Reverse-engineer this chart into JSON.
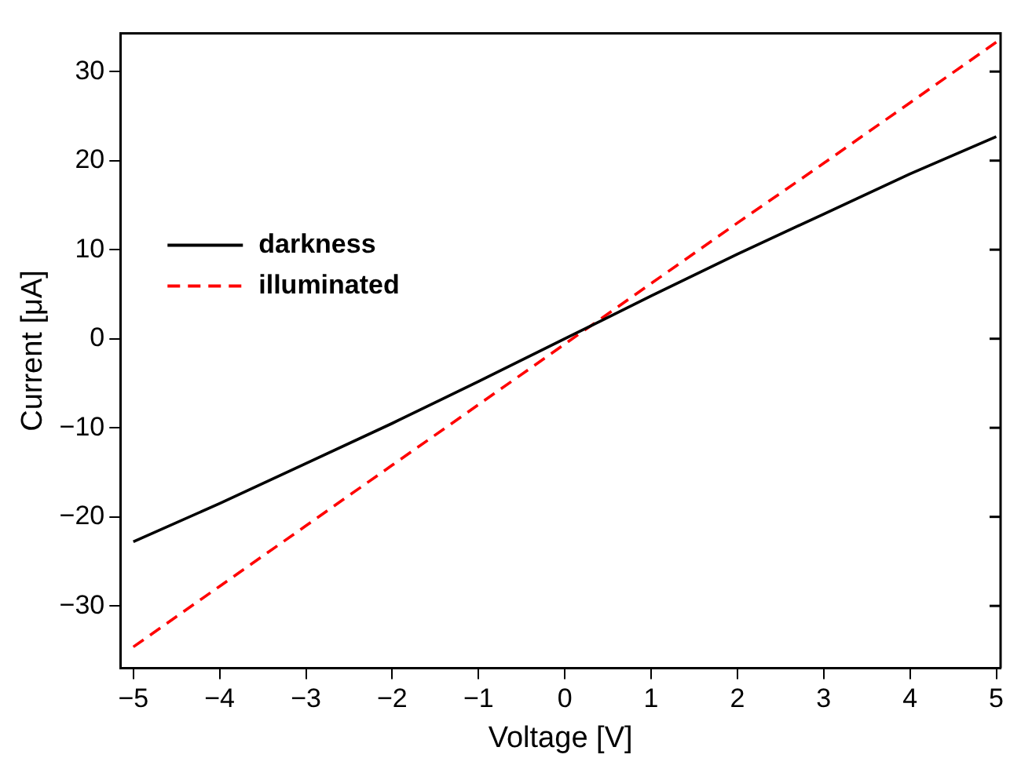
{
  "chart_data": {
    "type": "line",
    "xlabel": "Voltage [V]",
    "ylabel": "Current [μA]",
    "x": [
      -5,
      -4,
      -3,
      -2,
      -1,
      0,
      1,
      2,
      3,
      4,
      5
    ],
    "series": [
      {
        "name": "darkness",
        "color": "#000000",
        "line_style": "solid",
        "values": [
          -22.8,
          -18.5,
          -14,
          -9.5,
          -4.8,
          0,
          4.8,
          9.5,
          14,
          18.5,
          22.7
        ]
      },
      {
        "name": "illuminated",
        "color": "#ff0000",
        "line_style": "dashed",
        "values": [
          -34.6,
          -27.8,
          -21,
          -14.2,
          -7.4,
          -0.6,
          6.2,
          13,
          19.7,
          26.5,
          33.3
        ]
      }
    ],
    "xlim": [
      -5.15,
      5.05
    ],
    "xticks": [
      -5,
      -4,
      -3,
      -2,
      -1,
      0,
      1,
      2,
      3,
      4,
      5
    ],
    "ylim": [
      -37,
      34.3
    ],
    "yticks": [
      -30,
      -20,
      -10,
      0,
      10,
      20,
      30
    ],
    "grid": false,
    "legend": "top left",
    "marker": "none"
  }
}
